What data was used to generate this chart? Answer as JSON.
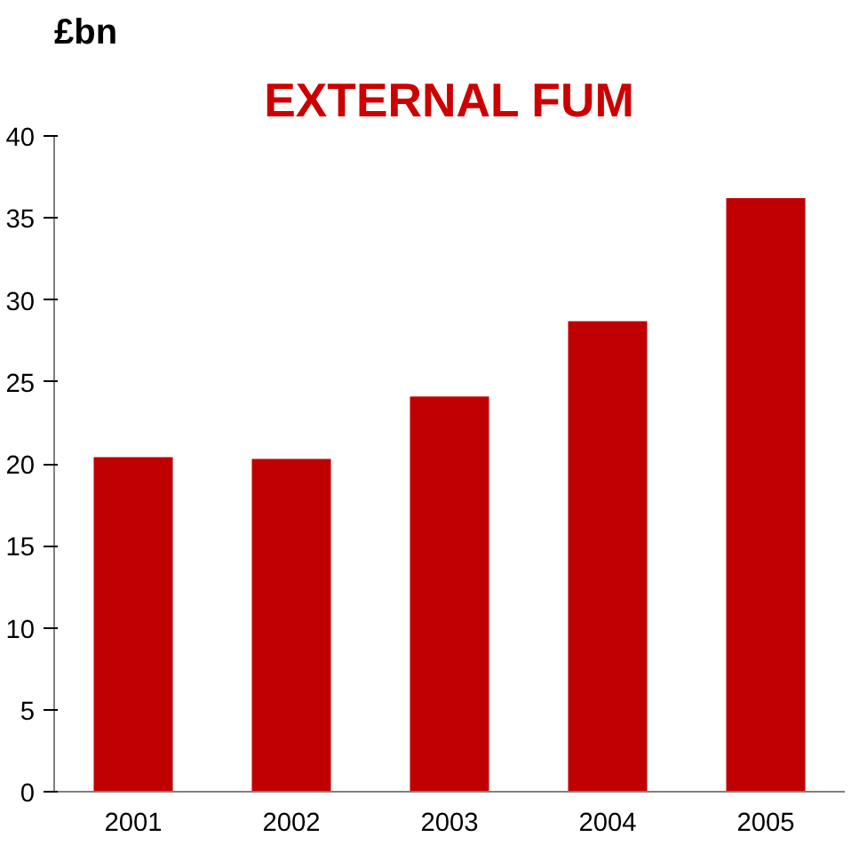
{
  "chart_data": {
    "type": "bar",
    "title": "EXTERNAL FUM",
    "ylabel": "£bn",
    "categories": [
      "2001",
      "2002",
      "2003",
      "2004",
      "2005"
    ],
    "values": [
      20.4,
      20.3,
      24.1,
      28.7,
      36.2
    ],
    "color": "#c00000",
    "ylim": [
      0,
      40
    ],
    "yticks": [
      0,
      5,
      10,
      15,
      20,
      25,
      30,
      35,
      40
    ],
    "grid": false
  }
}
